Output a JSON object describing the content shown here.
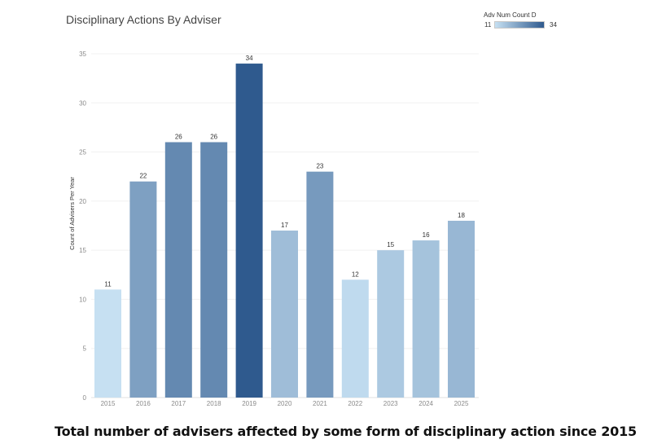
{
  "chart_data": {
    "type": "bar",
    "title": "Disciplinary Actions By Adviser",
    "ylabel": "Count of Advisers Per Year",
    "xlabel": "",
    "categories": [
      "2015",
      "2016",
      "2017",
      "2018",
      "2019",
      "2020",
      "2021",
      "2022",
      "2023",
      "2024",
      "2025"
    ],
    "values": [
      11,
      22,
      26,
      26,
      34,
      17,
      23,
      12,
      15,
      16,
      18
    ],
    "ylim": [
      0,
      35
    ],
    "yticks": [
      0,
      5,
      10,
      15,
      20,
      25,
      30,
      35
    ],
    "grid": true,
    "legend": {
      "title": "Adv Num Count D",
      "min_label": "11",
      "max_label": "34",
      "placement": "top-right",
      "color_min": "#c6e0f2",
      "color_max": "#2f5a8e"
    }
  },
  "caption": "Total number of advisers affected by some form of disciplinary action since 2015"
}
